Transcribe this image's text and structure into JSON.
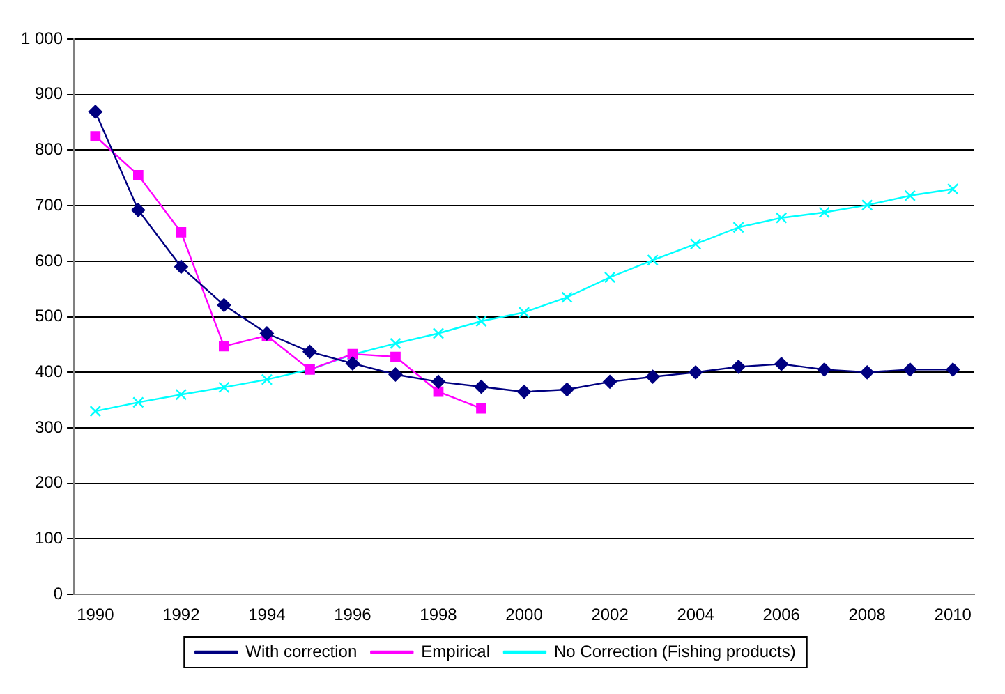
{
  "chart_data": {
    "type": "line",
    "categories": [
      "1990",
      null,
      "1992",
      null,
      "1994",
      null,
      "1996",
      null,
      "1998",
      null,
      "2000",
      null,
      "2002",
      null,
      "2004",
      null,
      "2006",
      null,
      "2008",
      null,
      "2010"
    ],
    "series": [
      {
        "name": "With correction",
        "color": "#000080",
        "marker": "diamond",
        "values": [
          869,
          692,
          590,
          521,
          470,
          437,
          416,
          396,
          383,
          374,
          365,
          369,
          383,
          392,
          400,
          410,
          415,
          405,
          400,
          405,
          405
        ]
      },
      {
        "name": "Empirical",
        "color": "#ff00ff",
        "marker": "square",
        "values": [
          825,
          755,
          652,
          447,
          466,
          405,
          433,
          428,
          365,
          335,
          null,
          null,
          null,
          null,
          null,
          null,
          null,
          null,
          null,
          null,
          null
        ]
      },
      {
        "name": "No Correction (Fishing products)",
        "color": "#00ffff",
        "marker": "cross",
        "values": [
          330,
          346,
          360,
          373,
          387,
          405,
          432,
          452,
          470,
          492,
          508,
          535,
          571,
          602,
          631,
          661,
          678,
          688,
          701,
          718,
          730
        ]
      }
    ],
    "ylim": [
      0,
      1000
    ],
    "yticks": [
      0,
      100,
      200,
      300,
      400,
      500,
      600,
      700,
      800,
      900,
      {
        "value": 1000,
        "label": "1 000"
      }
    ],
    "grid": "y",
    "legend": "bottom",
    "line_style": "solid"
  }
}
